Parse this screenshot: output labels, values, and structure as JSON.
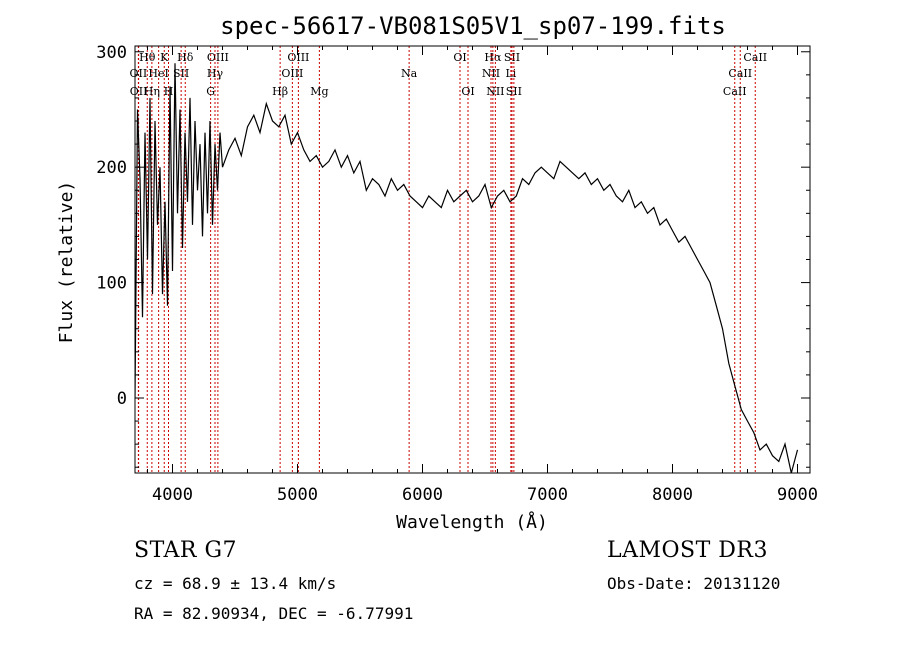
{
  "chart_data": {
    "type": "line",
    "title": "spec-56617-VB081S05V1_sp07-199.fits",
    "xlabel": "Wavelength (Å)",
    "ylabel": "Flux (relative)",
    "xlim": [
      3700,
      9100
    ],
    "ylim": [
      -65,
      305
    ],
    "xticks": [
      4000,
      5000,
      6000,
      7000,
      8000,
      9000
    ],
    "yticks": [
      0,
      100,
      200,
      300
    ],
    "series": [
      {
        "name": "spectrum",
        "x": [
          3700,
          3720,
          3740,
          3760,
          3780,
          3800,
          3820,
          3840,
          3860,
          3880,
          3900,
          3920,
          3940,
          3960,
          3980,
          4000,
          4020,
          4040,
          4060,
          4080,
          4100,
          4120,
          4140,
          4160,
          4180,
          4200,
          4220,
          4240,
          4260,
          4280,
          4300,
          4320,
          4340,
          4360,
          4380,
          4400,
          4450,
          4500,
          4550,
          4600,
          4650,
          4700,
          4750,
          4800,
          4850,
          4900,
          4950,
          5000,
          5050,
          5100,
          5150,
          5200,
          5250,
          5300,
          5350,
          5400,
          5450,
          5500,
          5550,
          5600,
          5650,
          5700,
          5750,
          5800,
          5850,
          5900,
          5950,
          6000,
          6050,
          6100,
          6150,
          6200,
          6250,
          6300,
          6350,
          6400,
          6450,
          6500,
          6550,
          6600,
          6650,
          6700,
          6750,
          6800,
          6850,
          6900,
          6950,
          7000,
          7050,
          7100,
          7150,
          7200,
          7250,
          7300,
          7350,
          7400,
          7450,
          7500,
          7550,
          7600,
          7650,
          7700,
          7750,
          7800,
          7850,
          7900,
          7950,
          8000,
          8050,
          8100,
          8150,
          8200,
          8250,
          8300,
          8350,
          8400,
          8450,
          8500,
          8550,
          8600,
          8650,
          8700,
          8750,
          8800,
          8850,
          8900,
          8950,
          9000
        ],
        "y": [
          0,
          250,
          190,
          70,
          230,
          120,
          260,
          90,
          240,
          150,
          200,
          90,
          170,
          80,
          270,
          110,
          290,
          160,
          250,
          130,
          230,
          170,
          260,
          150,
          240,
          180,
          220,
          140,
          230,
          160,
          240,
          150,
          220,
          180,
          230,
          200,
          215,
          225,
          210,
          235,
          245,
          230,
          255,
          240,
          235,
          245,
          220,
          230,
          215,
          205,
          210,
          200,
          205,
          215,
          200,
          210,
          195,
          205,
          180,
          190,
          185,
          175,
          190,
          180,
          185,
          175,
          170,
          165,
          175,
          170,
          165,
          180,
          170,
          175,
          180,
          170,
          175,
          185,
          165,
          175,
          180,
          170,
          175,
          190,
          185,
          195,
          200,
          195,
          190,
          205,
          200,
          195,
          190,
          195,
          185,
          190,
          180,
          185,
          175,
          170,
          180,
          165,
          170,
          160,
          165,
          150,
          155,
          145,
          135,
          140,
          130,
          120,
          110,
          100,
          80,
          60,
          30,
          10,
          -10,
          -20,
          -30,
          -45,
          -40,
          -50,
          -55,
          -40,
          -65,
          -45
        ]
      }
    ],
    "lines": [
      {
        "label": "Hθ",
        "x": 3798,
        "row": 1
      },
      {
        "label": "OII",
        "x": 3727,
        "row": 2
      },
      {
        "label": "OII",
        "x": 3729,
        "row": 3
      },
      {
        "label": "HeI",
        "x": 3889,
        "row": 2
      },
      {
        "label": "Hη",
        "x": 3835,
        "row": 3
      },
      {
        "label": "K",
        "x": 3934,
        "row": 1
      },
      {
        "label": "H",
        "x": 3968,
        "row": 3
      },
      {
        "label": "SII",
        "x": 4069,
        "row": 2
      },
      {
        "label": "Hδ",
        "x": 4102,
        "row": 1
      },
      {
        "label": "OIII",
        "x": 4363,
        "row": 1
      },
      {
        "label": "Hγ",
        "x": 4340,
        "row": 2
      },
      {
        "label": "G",
        "x": 4305,
        "row": 3
      },
      {
        "label": "Hβ",
        "x": 4861,
        "row": 3
      },
      {
        "label": "OIII",
        "x": 5007,
        "row": 1
      },
      {
        "label": "OIII",
        "x": 4959,
        "row": 2
      },
      {
        "label": "Mg",
        "x": 5175,
        "row": 3
      },
      {
        "label": "Na",
        "x": 5893,
        "row": 2
      },
      {
        "label": "OI",
        "x": 6300,
        "row": 1
      },
      {
        "label": "OI",
        "x": 6364,
        "row": 3
      },
      {
        "label": "Hα",
        "x": 6563,
        "row": 1
      },
      {
        "label": "NII",
        "x": 6548,
        "row": 2
      },
      {
        "label": "NII",
        "x": 6583,
        "row": 3
      },
      {
        "label": "SII",
        "x": 6716,
        "row": 1
      },
      {
        "label": "Li",
        "x": 6707,
        "row": 2
      },
      {
        "label": "SII",
        "x": 6731,
        "row": 3
      },
      {
        "label": "CaII",
        "x": 8662,
        "row": 1
      },
      {
        "label": "CaII",
        "x": 8542,
        "row": 2
      },
      {
        "label": "CaII",
        "x": 8498,
        "row": 3
      }
    ],
    "grid": false,
    "legend": "none"
  },
  "info": {
    "class_line": "STAR    G7",
    "cz_line": "cz = 68.9 ± 13.4 km/s",
    "coord_line": "RA =  82.90934, DEC =  -6.77991",
    "survey": "LAMOST DR3",
    "obs_date": "Obs-Date: 20131120"
  },
  "colors": {
    "spectrum": "#000000",
    "line_marker": "#cc0000",
    "axis": "#000000"
  }
}
